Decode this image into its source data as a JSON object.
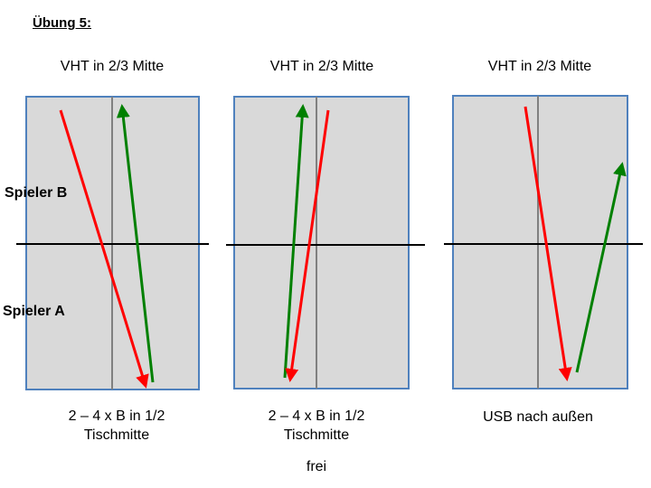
{
  "title": "Übung 5:",
  "players": {
    "top": "Spieler B",
    "bottom": "Spieler A"
  },
  "panels": [
    {
      "heading": "VHT in 2/3 Mitte",
      "caption_line1": "2 – 4 x B in 1/2",
      "caption_line2": "Tischmitte"
    },
    {
      "heading": "VHT in 2/3 Mitte",
      "caption_line1": "2 – 4 x B in 1/2",
      "caption_line2": "Tischmitte"
    },
    {
      "heading": "VHT in 2/3 Mitte",
      "caption_line1": "USB nach außen",
      "caption_line2": ""
    }
  ],
  "footer": "frei",
  "colors": {
    "table_fill": "#d9d9d9",
    "table_border": "#4f81bd",
    "net_line": "#000000",
    "center_line": "#808080",
    "arrow_red": "#ff0000",
    "arrow_green": "#008000"
  }
}
